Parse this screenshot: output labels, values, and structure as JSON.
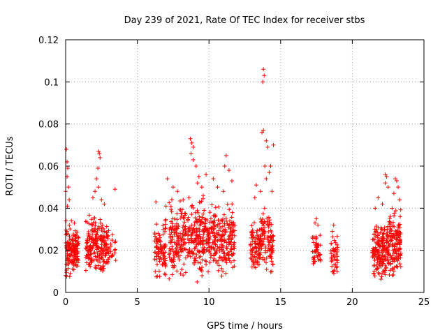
{
  "chart_data": {
    "type": "scatter",
    "title": "Day 239 of 2021, Rate Of TEC Index for receiver stbs",
    "xlabel": "GPS time / hours",
    "ylabel": "ROTI / TECUs",
    "xlim": [
      0,
      25
    ],
    "ylim": [
      0,
      0.12
    ],
    "x_ticks": [
      0,
      5,
      10,
      15,
      20,
      25
    ],
    "y_ticks": [
      0,
      0.02,
      0.04,
      0.06,
      0.08,
      0.1,
      0.12
    ],
    "x_tick_labels": [
      "0",
      "5",
      "10",
      "15",
      "20",
      "25"
    ],
    "y_tick_labels": [
      "0",
      "0.02",
      "0.04",
      "0.06",
      "0.08",
      "0.1",
      "0.12"
    ],
    "grid": true,
    "marker": "+",
    "color": "#ff0000",
    "clusters": [
      {
        "x_range": [
          0.0,
          0.9
        ],
        "y_range": [
          0.005,
          0.034
        ],
        "count": 160
      },
      {
        "x_range": [
          1.4,
          3.0
        ],
        "y_range": [
          0.007,
          0.037
        ],
        "count": 220
      },
      {
        "x_range": [
          3.0,
          3.5
        ],
        "y_range": [
          0.01,
          0.028
        ],
        "count": 18
      },
      {
        "x_range": [
          6.2,
          7.0
        ],
        "y_range": [
          0.005,
          0.035
        ],
        "count": 90
      },
      {
        "x_range": [
          7.2,
          8.4
        ],
        "y_range": [
          0.005,
          0.045
        ],
        "count": 150
      },
      {
        "x_range": [
          8.5,
          10.4
        ],
        "y_range": [
          0.005,
          0.045
        ],
        "count": 240
      },
      {
        "x_range": [
          10.4,
          11.8
        ],
        "y_range": [
          0.006,
          0.042
        ],
        "count": 170
      },
      {
        "x_range": [
          12.9,
          13.6
        ],
        "y_range": [
          0.008,
          0.035
        ],
        "count": 90
      },
      {
        "x_range": [
          13.6,
          14.5
        ],
        "y_range": [
          0.008,
          0.04
        ],
        "count": 110
      },
      {
        "x_range": [
          17.2,
          17.8
        ],
        "y_range": [
          0.008,
          0.03
        ],
        "count": 45
      },
      {
        "x_range": [
          18.5,
          19.0
        ],
        "y_range": [
          0.007,
          0.027
        ],
        "count": 45
      },
      {
        "x_range": [
          21.4,
          22.4
        ],
        "y_range": [
          0.003,
          0.036
        ],
        "count": 160
      },
      {
        "x_range": [
          22.4,
          23.4
        ],
        "y_range": [
          0.005,
          0.04
        ],
        "count": 160
      }
    ],
    "outliers": [
      [
        0.05,
        0.068
      ],
      [
        0.1,
        0.062
      ],
      [
        0.15,
        0.059
      ],
      [
        0.1,
        0.055
      ],
      [
        0.2,
        0.05
      ],
      [
        0.0,
        0.048
      ],
      [
        0.25,
        0.044
      ],
      [
        0.12,
        0.041
      ],
      [
        2.3,
        0.067
      ],
      [
        2.35,
        0.066
      ],
      [
        2.4,
        0.064
      ],
      [
        2.25,
        0.059
      ],
      [
        2.15,
        0.054
      ],
      [
        2.3,
        0.05
      ],
      [
        2.05,
        0.048
      ],
      [
        2.5,
        0.044
      ],
      [
        3.45,
        0.049
      ],
      [
        2.7,
        0.042
      ],
      [
        1.9,
        0.045
      ],
      [
        6.3,
        0.043
      ],
      [
        7.0,
        0.041
      ],
      [
        7.1,
        0.054
      ],
      [
        7.5,
        0.05
      ],
      [
        7.8,
        0.048
      ],
      [
        8.2,
        0.044
      ],
      [
        8.7,
        0.073
      ],
      [
        8.8,
        0.071
      ],
      [
        8.9,
        0.069
      ],
      [
        8.75,
        0.066
      ],
      [
        8.9,
        0.063
      ],
      [
        9.1,
        0.06
      ],
      [
        9.3,
        0.055
      ],
      [
        9.2,
        0.052
      ],
      [
        9.5,
        0.05
      ],
      [
        9.8,
        0.056
      ],
      [
        10.3,
        0.054
      ],
      [
        10.6,
        0.05
      ],
      [
        11.1,
        0.06
      ],
      [
        11.4,
        0.058
      ],
      [
        11.2,
        0.065
      ],
      [
        11.6,
        0.053
      ],
      [
        11.0,
        0.048
      ],
      [
        9.6,
        0.046
      ],
      [
        13.8,
        0.106
      ],
      [
        13.85,
        0.103
      ],
      [
        13.75,
        0.1
      ],
      [
        13.8,
        0.077
      ],
      [
        13.7,
        0.076
      ],
      [
        14.0,
        0.072
      ],
      [
        14.1,
        0.069
      ],
      [
        14.5,
        0.07
      ],
      [
        14.3,
        0.06
      ],
      [
        14.2,
        0.057
      ],
      [
        13.9,
        0.06
      ],
      [
        14.0,
        0.054
      ],
      [
        13.3,
        0.051
      ],
      [
        13.2,
        0.045
      ],
      [
        13.6,
        0.048
      ],
      [
        14.4,
        0.048
      ],
      [
        17.5,
        0.035
      ],
      [
        17.4,
        0.033
      ],
      [
        17.6,
        0.032
      ],
      [
        18.7,
        0.032
      ],
      [
        18.6,
        0.029
      ],
      [
        22.3,
        0.056
      ],
      [
        22.4,
        0.055
      ],
      [
        22.3,
        0.052
      ],
      [
        22.5,
        0.05
      ],
      [
        23.0,
        0.054
      ],
      [
        23.1,
        0.053
      ],
      [
        23.2,
        0.05
      ],
      [
        22.9,
        0.047
      ],
      [
        21.8,
        0.045
      ],
      [
        22.1,
        0.042
      ],
      [
        23.3,
        0.044
      ],
      [
        21.6,
        0.04
      ]
    ]
  }
}
